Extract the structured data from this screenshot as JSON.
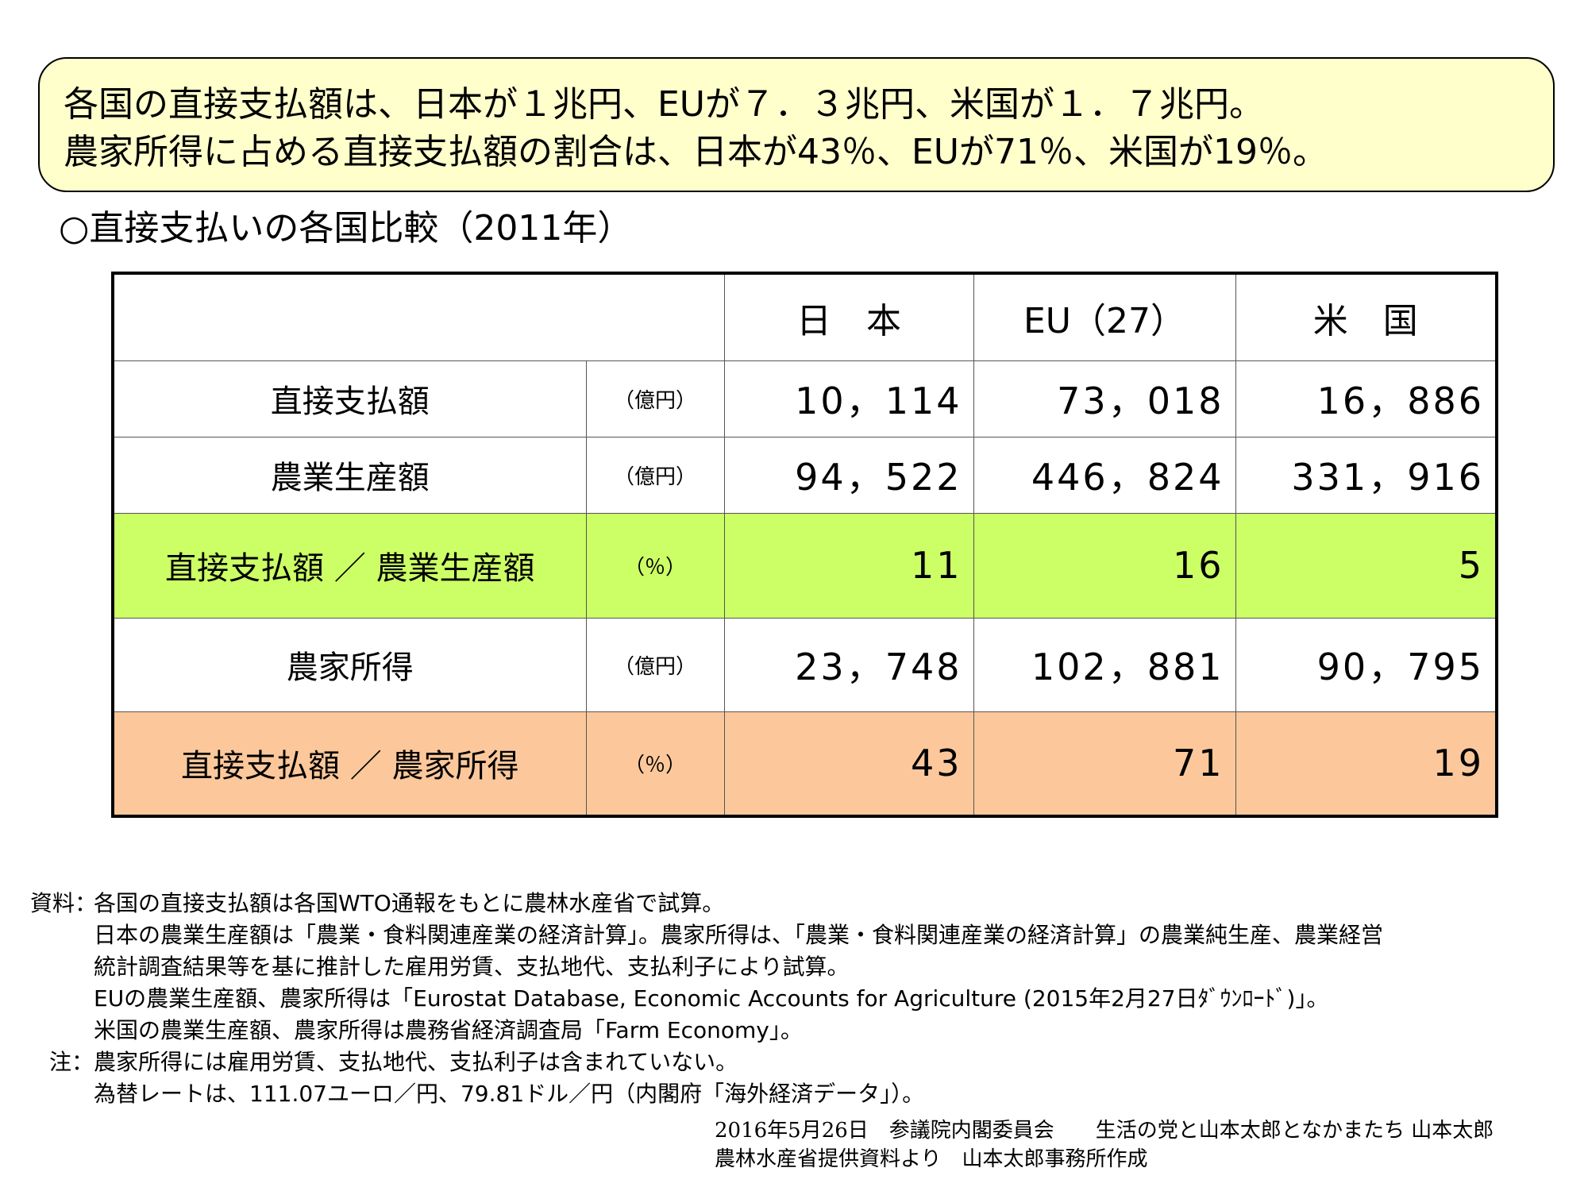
{
  "summary": {
    "line1": "各国の直接支払額は、日本が１兆円、EUが７．３兆円、米国が１．７兆円。",
    "line2": "農家所得に占める直接支払額の割合は、日本が43％、EUが71％、米国が19％。",
    "background": "#ffffcc"
  },
  "section_title": "○直接支払いの各国比較（2011年）",
  "table": {
    "headers": [
      "日　本",
      "EU（27）",
      "米　国"
    ],
    "rows": [
      {
        "label": "直接支払額",
        "unit": "（億円）",
        "values": [
          "10，114",
          "73，018",
          "16，886"
        ]
      },
      {
        "label": "農業生産額",
        "unit": "（億円）",
        "values": [
          "94，522",
          "446，824",
          "331，916"
        ]
      },
      {
        "label": "直接支払額 ／ 農業生産額",
        "unit": "（％）",
        "values": [
          "11",
          "16",
          "5"
        ]
      },
      {
        "label": "農家所得",
        "unit": "（億円）",
        "values": [
          "23，748",
          "102，881",
          "90，795"
        ]
      },
      {
        "label": "直接支払額 ／ 農家所得",
        "unit": "（％）",
        "values": [
          "43",
          "71",
          "19"
        ]
      }
    ],
    "highlight_colors": {
      "green": "#ccff66",
      "orange": "#fcc89b"
    }
  },
  "notes": {
    "source_head": "資料：",
    "source_lines": [
      "各国の直接支払額は各国WTO通報をもとに農林水産省で試算。",
      "日本の農業生産額は「農業・食料関連産業の経済計算」。農家所得は、「農業・食料関連産業の経済計算」の農業純生産、農業経営",
      "統計調査結果等を基に推計した雇用労賃、支払地代、支払利子により試算。",
      "EUの農業生産額、農家所得は「Eurostat Database, Economic Accounts for Agriculture (2015年2月27日ﾀﾞｳﾝﾛｰﾄﾞ)」。",
      "米国の農業生産額、農家所得は農務省経済調査局「Farm Economy」。"
    ],
    "note_head": "注：",
    "note_lines": [
      "農家所得には雇用労賃、支払地代、支払利子は含まれていない。",
      "為替レートは、111.07ユーロ／円、79.81ドル／円（内閣府「海外経済データ」）。"
    ]
  },
  "credits": {
    "line1": "2016年5月26日　参議院内閣委員会　　生活の党と山本太郎となかまたち 山本太郎",
    "line2": "農林水産省提供資料より　山本太郎事務所作成"
  }
}
